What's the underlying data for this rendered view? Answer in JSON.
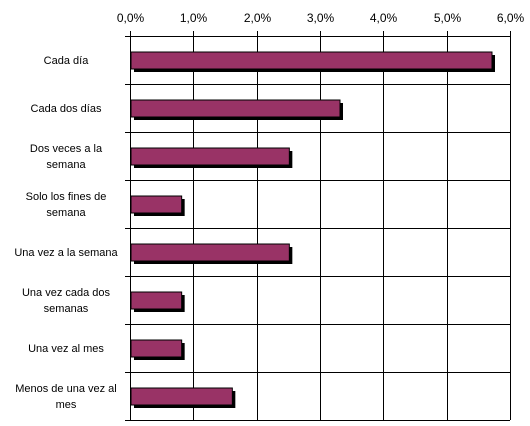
{
  "chart_data": {
    "type": "bar",
    "orientation": "horizontal",
    "categories": [
      [
        "Cada día"
      ],
      [
        "Cada dos días"
      ],
      [
        "Dos veces a la",
        "semana"
      ],
      [
        "Solo los fines de",
        "semana"
      ],
      [
        "Una vez a la semana"
      ],
      [
        "Una vez cada dos",
        "semanas"
      ],
      [
        "Una vez al mes"
      ],
      [
        "Menos de una vez al",
        "mes"
      ]
    ],
    "values": [
      5.7,
      3.3,
      2.5,
      0.8,
      2.5,
      0.8,
      0.8,
      1.6
    ],
    "xlim": [
      0,
      6
    ],
    "xticks": [
      0,
      1,
      2,
      3,
      4,
      5,
      6
    ],
    "xtick_labels": [
      "0,0%",
      "1,0%",
      "2,0%",
      "3,0%",
      "4,0%",
      "5,0%",
      "6,0%"
    ],
    "x_axis_position": "top",
    "grid": true,
    "title": "",
    "xlabel": "",
    "ylabel": "",
    "colors": {
      "bar": "#993366",
      "bar_shadow": "#000000",
      "grid": "#000000",
      "axis": "#000000"
    }
  }
}
